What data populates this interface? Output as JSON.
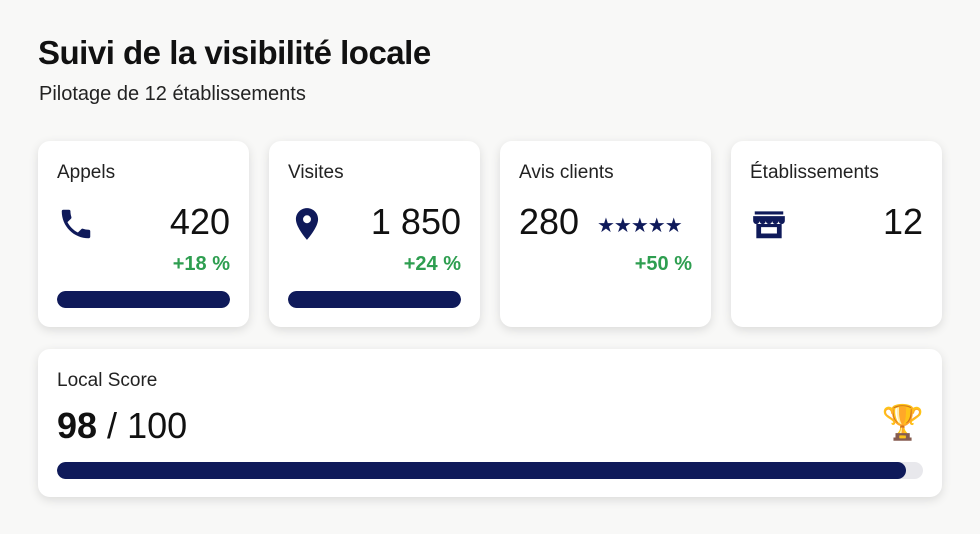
{
  "header": {
    "title": "Suivi de la visibilité locale",
    "subtitle": "Pilotage de 12 établissements"
  },
  "colors": {
    "accent": "#0f1a5a",
    "positive": "#2e9e50"
  },
  "cards": [
    {
      "label": "Appels",
      "icon": "phone-icon",
      "value": "420",
      "delta": "+18 %",
      "progress": 1.0
    },
    {
      "label": "Visites",
      "icon": "map-pin-icon",
      "value": "1 850",
      "delta": "+24 %",
      "progress": 1.0
    },
    {
      "label": "Avis clients",
      "icon": "stars-icon",
      "value": "280",
      "stars": "★★★★★",
      "rating": 5,
      "delta": "+50 %"
    },
    {
      "label": "Établissements",
      "icon": "store-icon",
      "value": "12"
    }
  ],
  "score": {
    "label": "Local Score",
    "value": "98",
    "separator": " / ",
    "max": "100",
    "icon": "trophy-icon",
    "trophy": "🏆",
    "progress": 0.98
  }
}
